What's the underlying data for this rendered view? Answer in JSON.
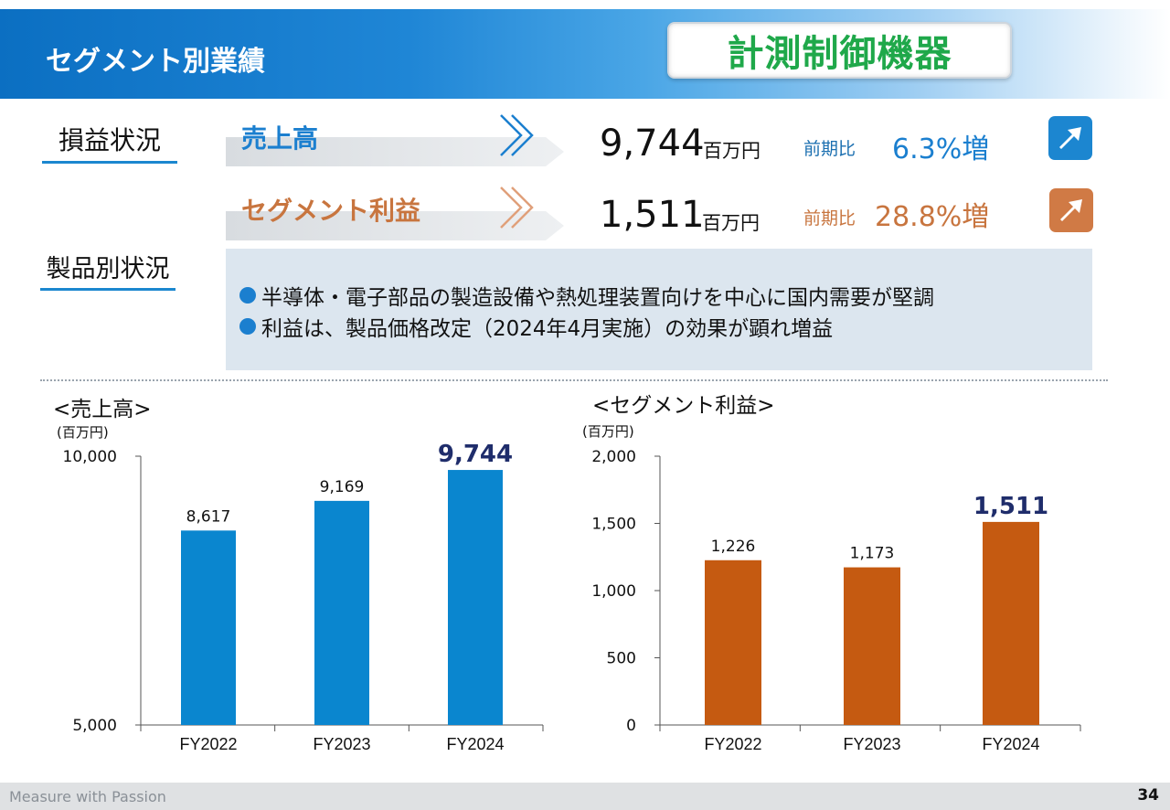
{
  "header": {
    "title": "セグメント別業績",
    "segment": "計測制御機器"
  },
  "labels": {
    "profit_loss": "損益状況",
    "product": "製品別状況"
  },
  "kpis": [
    {
      "label": "売上高",
      "value": "9,744",
      "unit": "百万円",
      "compare_label": "前期比",
      "compare_value": "6.3%増",
      "color": "#1b7fcf",
      "trend": "up"
    },
    {
      "label": "セグメント利益",
      "value": "1,511",
      "unit": "百万円",
      "compare_label": "前期比",
      "compare_value": "28.8%増",
      "color": "#c8753f",
      "trend": "up"
    }
  ],
  "product_notes": [
    "半導体・電子部品の製造設備や熱処理装置向けを中心に国内需要が堅調",
    "利益は、製品価格改定（2024年4月実施）の効果が顕れ増益"
  ],
  "chart_data": [
    {
      "type": "bar",
      "title": "<売上高>",
      "unit_label": "(百万円)",
      "categories": [
        "FY2022",
        "FY2023",
        "FY2024"
      ],
      "values": [
        8617,
        9169,
        9744
      ],
      "value_labels": [
        "8,617",
        "9,169",
        "9,744"
      ],
      "highlight_index": 2,
      "ylim": [
        5000,
        10000
      ],
      "y_ticks": [
        5000,
        10000
      ],
      "y_tick_labels": [
        "5,000",
        "10,000"
      ],
      "bar_color": "#0a86cf",
      "highlight_label_color": "#1f2d6b",
      "grid": false
    },
    {
      "type": "bar",
      "title": "<セグメント利益>",
      "unit_label": "(百万円)",
      "categories": [
        "FY2022",
        "FY2023",
        "FY2024"
      ],
      "values": [
        1226,
        1173,
        1511
      ],
      "value_labels": [
        "1,226",
        "1,173",
        "1,511"
      ],
      "highlight_index": 2,
      "ylim": [
        0,
        2000
      ],
      "y_ticks": [
        0,
        500,
        1000,
        1500,
        2000
      ],
      "y_tick_labels": [
        "0",
        "500",
        "1,000",
        "1,500",
        "2,000"
      ],
      "bar_color": "#c55a11",
      "highlight_label_color": "#1f2d6b",
      "grid": false
    }
  ],
  "footer": {
    "tagline": "Measure with Passion",
    "page": "34"
  }
}
